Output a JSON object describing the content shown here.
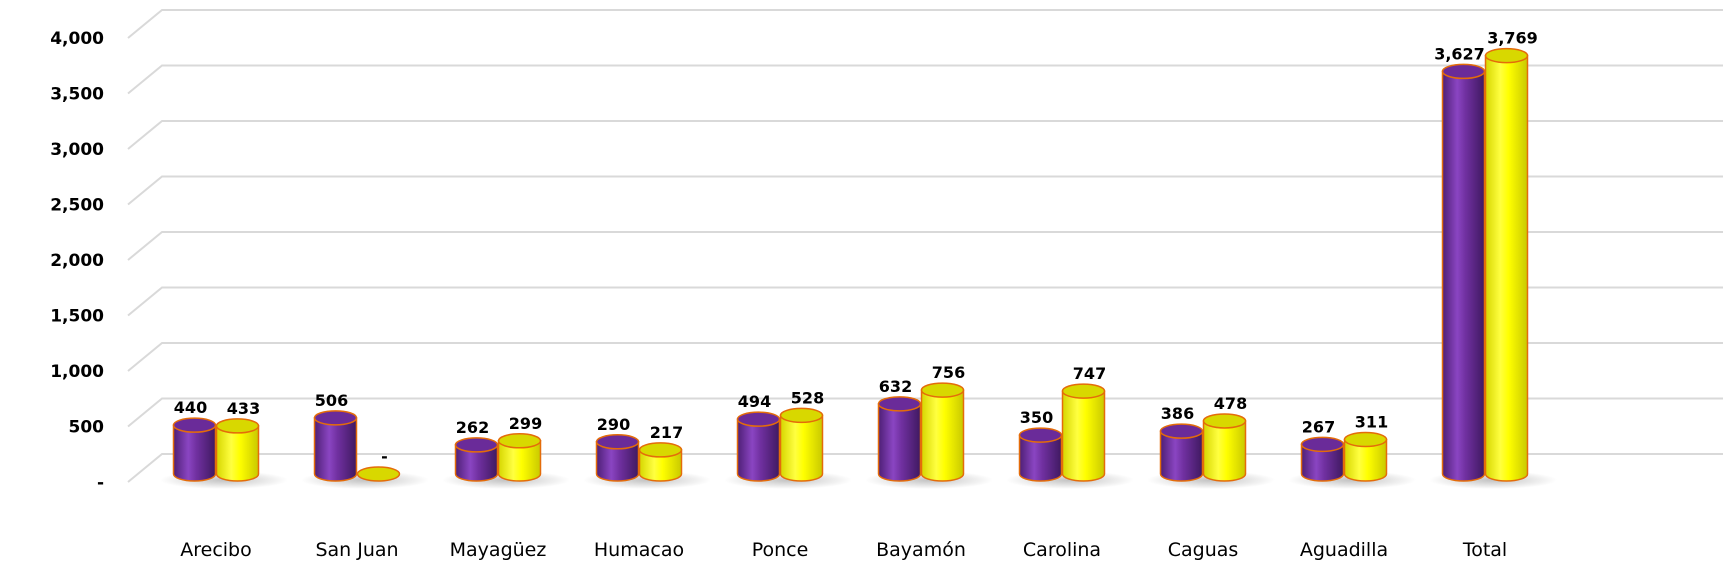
{
  "chart_data": {
    "type": "bar",
    "categories": [
      "Arecibo",
      "San Juan",
      "Mayagüez",
      "Humacao",
      "Ponce",
      "Bayamón",
      "Carolina",
      "Caguas",
      "Aguadilla",
      "Total"
    ],
    "series": [
      {
        "values": [
          440,
          506,
          262,
          290,
          494,
          632,
          350,
          386,
          267,
          3627
        ],
        "color": "#7030A0"
      },
      {
        "values": [
          433,
          0,
          299,
          217,
          528,
          756,
          747,
          478,
          311,
          3769
        ],
        "color": "#FFFF00"
      }
    ],
    "data_labels": [
      [
        "440",
        "506",
        "262",
        "290",
        "494",
        "632",
        "350",
        "386",
        "267",
        "3,627"
      ],
      [
        "433",
        "-",
        "299",
        "217",
        "528",
        "756",
        "747",
        "478",
        "311",
        "3,769"
      ]
    ],
    "y_ticks": [
      0,
      500,
      1000,
      1500,
      2000,
      2500,
      3000,
      3500,
      4000
    ],
    "y_tick_labels": [
      "-",
      "500",
      "1,000",
      "1,500",
      "2,000",
      "2,500",
      "3,000",
      "3,500",
      "4,000"
    ],
    "ylim": [
      0,
      4000
    ],
    "grid": true,
    "bar_shape": "cylinder",
    "bar_outline_color": "#E46C0A",
    "gridline_color": "#D9D9D9"
  }
}
